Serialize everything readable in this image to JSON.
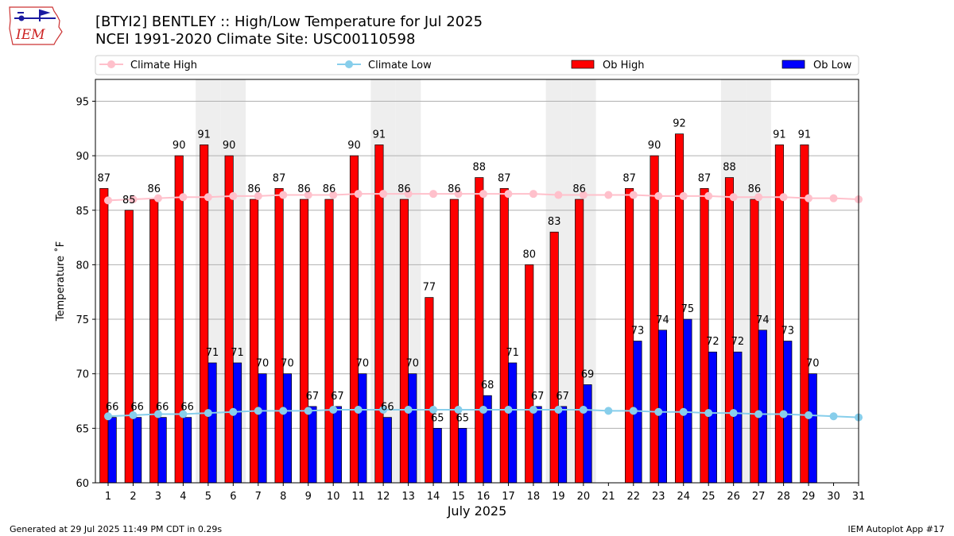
{
  "logo": {
    "text": "IEM"
  },
  "title": {
    "line1": "[BTYI2] BENTLEY :: High/Low Temperature for Jul 2025",
    "line2": "NCEI 1991-2020 Climate Site: USC00110598"
  },
  "footer": {
    "left": "Generated at 29 Jul 2025 11:49 PM CDT in 0.29s",
    "right": "IEM Autoplot App #17"
  },
  "colors": {
    "ob_high": "#ff0000",
    "ob_low": "#0000ff",
    "climate_high": "#ffc0cb",
    "climate_low": "#87ceeb",
    "weekend_shade": "#eeeeee",
    "grid": "#b0b0b0"
  },
  "chart_data": {
    "type": "bar",
    "xlabel": "July 2025",
    "ylabel": "Temperature ˚F",
    "ylim": [
      60,
      97
    ],
    "yticks": [
      60,
      65,
      70,
      75,
      80,
      85,
      90,
      95
    ],
    "grid": "horizontal",
    "legend_position": "top",
    "categories": [
      "1",
      "2",
      "3",
      "4",
      "5",
      "6",
      "7",
      "8",
      "9",
      "10",
      "11",
      "12",
      "13",
      "14",
      "15",
      "16",
      "17",
      "18",
      "19",
      "20",
      "21",
      "22",
      "23",
      "24",
      "25",
      "26",
      "27",
      "28",
      "29",
      "30",
      "31"
    ],
    "shaded_days": [
      "5",
      "6",
      "12",
      "13",
      "19",
      "20",
      "26",
      "27"
    ],
    "series": [
      {
        "name": "Ob High",
        "kind": "bar",
        "values": [
          87,
          85,
          86,
          90,
          91,
          90,
          86,
          87,
          86,
          86,
          90,
          91,
          86,
          77,
          86,
          88,
          87,
          80,
          83,
          86,
          null,
          87,
          90,
          92,
          87,
          88,
          86,
          91,
          91,
          null,
          null
        ]
      },
      {
        "name": "Ob Low",
        "kind": "bar",
        "values": [
          66,
          66,
          66,
          66,
          71,
          71,
          70,
          70,
          67,
          67,
          70,
          66,
          70,
          65,
          65,
          68,
          71,
          67,
          67,
          69,
          null,
          73,
          74,
          75,
          72,
          72,
          74,
          73,
          70,
          null,
          null
        ]
      },
      {
        "name": "Climate High",
        "kind": "line",
        "values": [
          85.9,
          86.0,
          86.1,
          86.2,
          86.2,
          86.3,
          86.3,
          86.4,
          86.4,
          86.4,
          86.5,
          86.5,
          86.5,
          86.5,
          86.5,
          86.5,
          86.5,
          86.5,
          86.4,
          86.4,
          86.4,
          86.4,
          86.3,
          86.3,
          86.3,
          86.2,
          86.2,
          86.2,
          86.1,
          86.1,
          86.0
        ]
      },
      {
        "name": "Climate Low",
        "kind": "line",
        "values": [
          66.1,
          66.2,
          66.3,
          66.3,
          66.4,
          66.5,
          66.6,
          66.6,
          66.6,
          66.7,
          66.7,
          66.7,
          66.7,
          66.7,
          66.7,
          66.7,
          66.7,
          66.7,
          66.7,
          66.7,
          66.6,
          66.6,
          66.5,
          66.5,
          66.4,
          66.4,
          66.3,
          66.3,
          66.2,
          66.1,
          66.0
        ]
      }
    ]
  }
}
